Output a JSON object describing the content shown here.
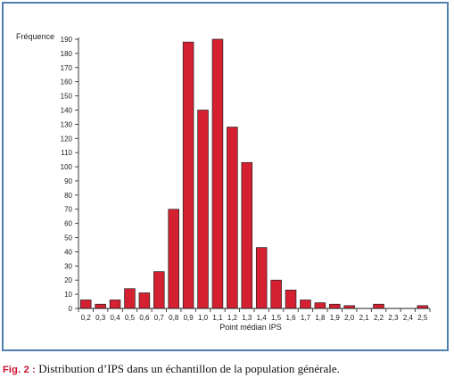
{
  "chart_data": {
    "type": "bar",
    "title": "",
    "ylabel": "Fréquence",
    "xlabel": "Point médian IPS",
    "ylim": [
      0,
      190
    ],
    "y_ticks": [
      "0",
      "10",
      "20",
      "30",
      "40",
      "50",
      "60",
      "70",
      "80",
      "90",
      "100",
      "110",
      "120",
      "130",
      "140",
      "150",
      "160",
      "170",
      "180",
      "190"
    ],
    "categories": [
      "0,2",
      "0,3",
      "0,4",
      "0,5",
      "0,6",
      "0,7",
      "0,8",
      "0,9",
      "1,0",
      "1,1",
      "1,2",
      "1,3",
      "1,4",
      "1,5",
      "1,6",
      "1,7",
      "1,8",
      "1,9",
      "2,0",
      "2,1",
      "2,2",
      "2,3",
      "2,4",
      "2,5"
    ],
    "values": [
      6,
      3,
      6,
      14,
      11,
      26,
      70,
      188,
      140,
      190,
      128,
      103,
      43,
      20,
      13,
      6,
      4,
      3,
      2,
      0,
      3,
      0,
      0,
      2
    ],
    "bar_color": "#d42031",
    "bar_edge_color": "#222222",
    "grid": false
  },
  "caption": {
    "prefix": "Fig. 2 :",
    "text": "Distribution d’IPS dans un échantillon de la population générale."
  },
  "colors": {
    "frame": "#4f7fae",
    "caption_prefix": "#c8102e"
  }
}
